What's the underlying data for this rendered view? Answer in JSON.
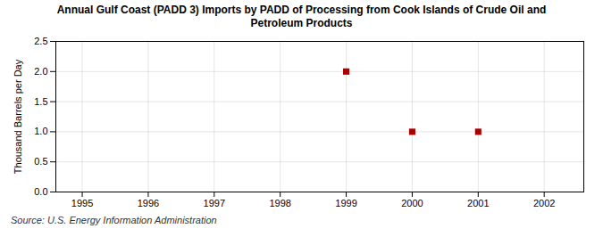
{
  "chart_data": {
    "type": "scatter",
    "title": "Annual Gulf Coast (PADD 3) Imports by PADD of Processing from Cook Islands of Crude Oil and\nPetroleum Products",
    "ylabel": "Thousand Barrels per Day",
    "caption": "Source: U.S. Energy Information Administration",
    "x": [
      1999,
      2000,
      2001
    ],
    "values": [
      2.0,
      1.0,
      1.0
    ],
    "color": "#aa0000",
    "marker": "square",
    "xlim": [
      1994.6,
      2002.6
    ],
    "ylim": [
      0.0,
      2.5
    ],
    "xticks": [
      1995,
      1996,
      1997,
      1998,
      1999,
      2000,
      2001,
      2002
    ],
    "yticks": [
      {
        "value": 0.0,
        "label": "0.0"
      },
      0.5,
      {
        "value": 1.0,
        "label": "1.0"
      },
      1.5,
      {
        "value": 2.0,
        "label": "2.0"
      },
      2.5
    ],
    "grid": true
  }
}
